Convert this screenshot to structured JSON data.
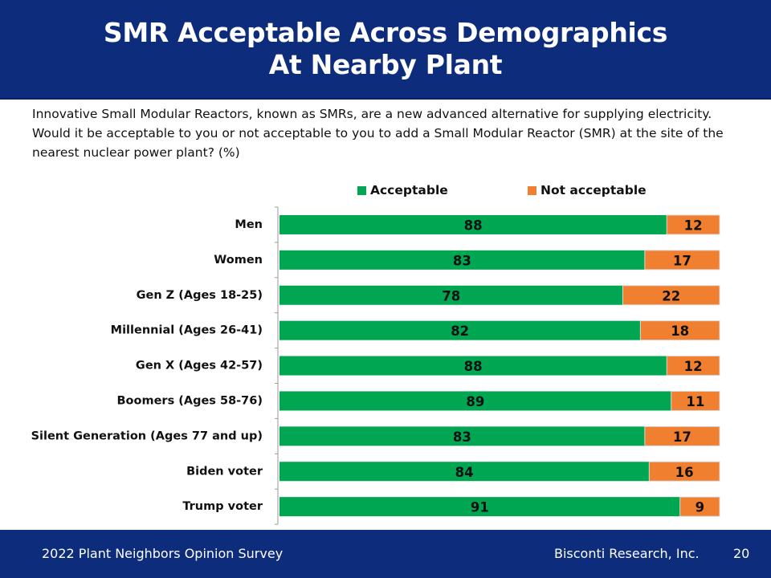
{
  "header": {
    "title_line1": "SMR Acceptable Across Demographics",
    "title_line2": "At Nearby Plant"
  },
  "question": "Innovative Small Modular Reactors, known as SMRs, are a new advanced alternative for supplying electricity.  Would it be acceptable to you or not acceptable to you to add a Small Modular Reactor (SMR) at the site of the nearest nuclear power plant? (%)",
  "legend": {
    "acceptable": "Acceptable",
    "not_acceptable": "Not acceptable"
  },
  "colors": {
    "header_bg": "#0d2c7c",
    "acceptable": "#00a651",
    "not_acceptable": "#f07f30"
  },
  "chart_data": {
    "type": "bar",
    "orientation": "horizontal",
    "stacked": true,
    "categories": [
      "Men",
      "Women",
      "Gen Z (Ages 18-25)",
      "Millennial (Ages 26-41)",
      "Gen X (Ages 42-57)",
      "Boomers (Ages 58-76)",
      "Silent Generation (Ages 77 and up)",
      "Biden voter",
      "Trump voter"
    ],
    "series": [
      {
        "name": "Acceptable",
        "values": [
          88,
          83,
          78,
          82,
          88,
          89,
          83,
          84,
          91
        ]
      },
      {
        "name": "Not acceptable",
        "values": [
          12,
          17,
          22,
          18,
          12,
          11,
          17,
          16,
          9
        ]
      }
    ],
    "xlim": [
      0,
      100
    ],
    "legend_position": "top",
    "data_labels": true,
    "grid": false
  },
  "footer": {
    "survey": "2022 Plant Neighbors Opinion Survey",
    "company": "Bisconti Research, Inc.",
    "page": "20"
  }
}
